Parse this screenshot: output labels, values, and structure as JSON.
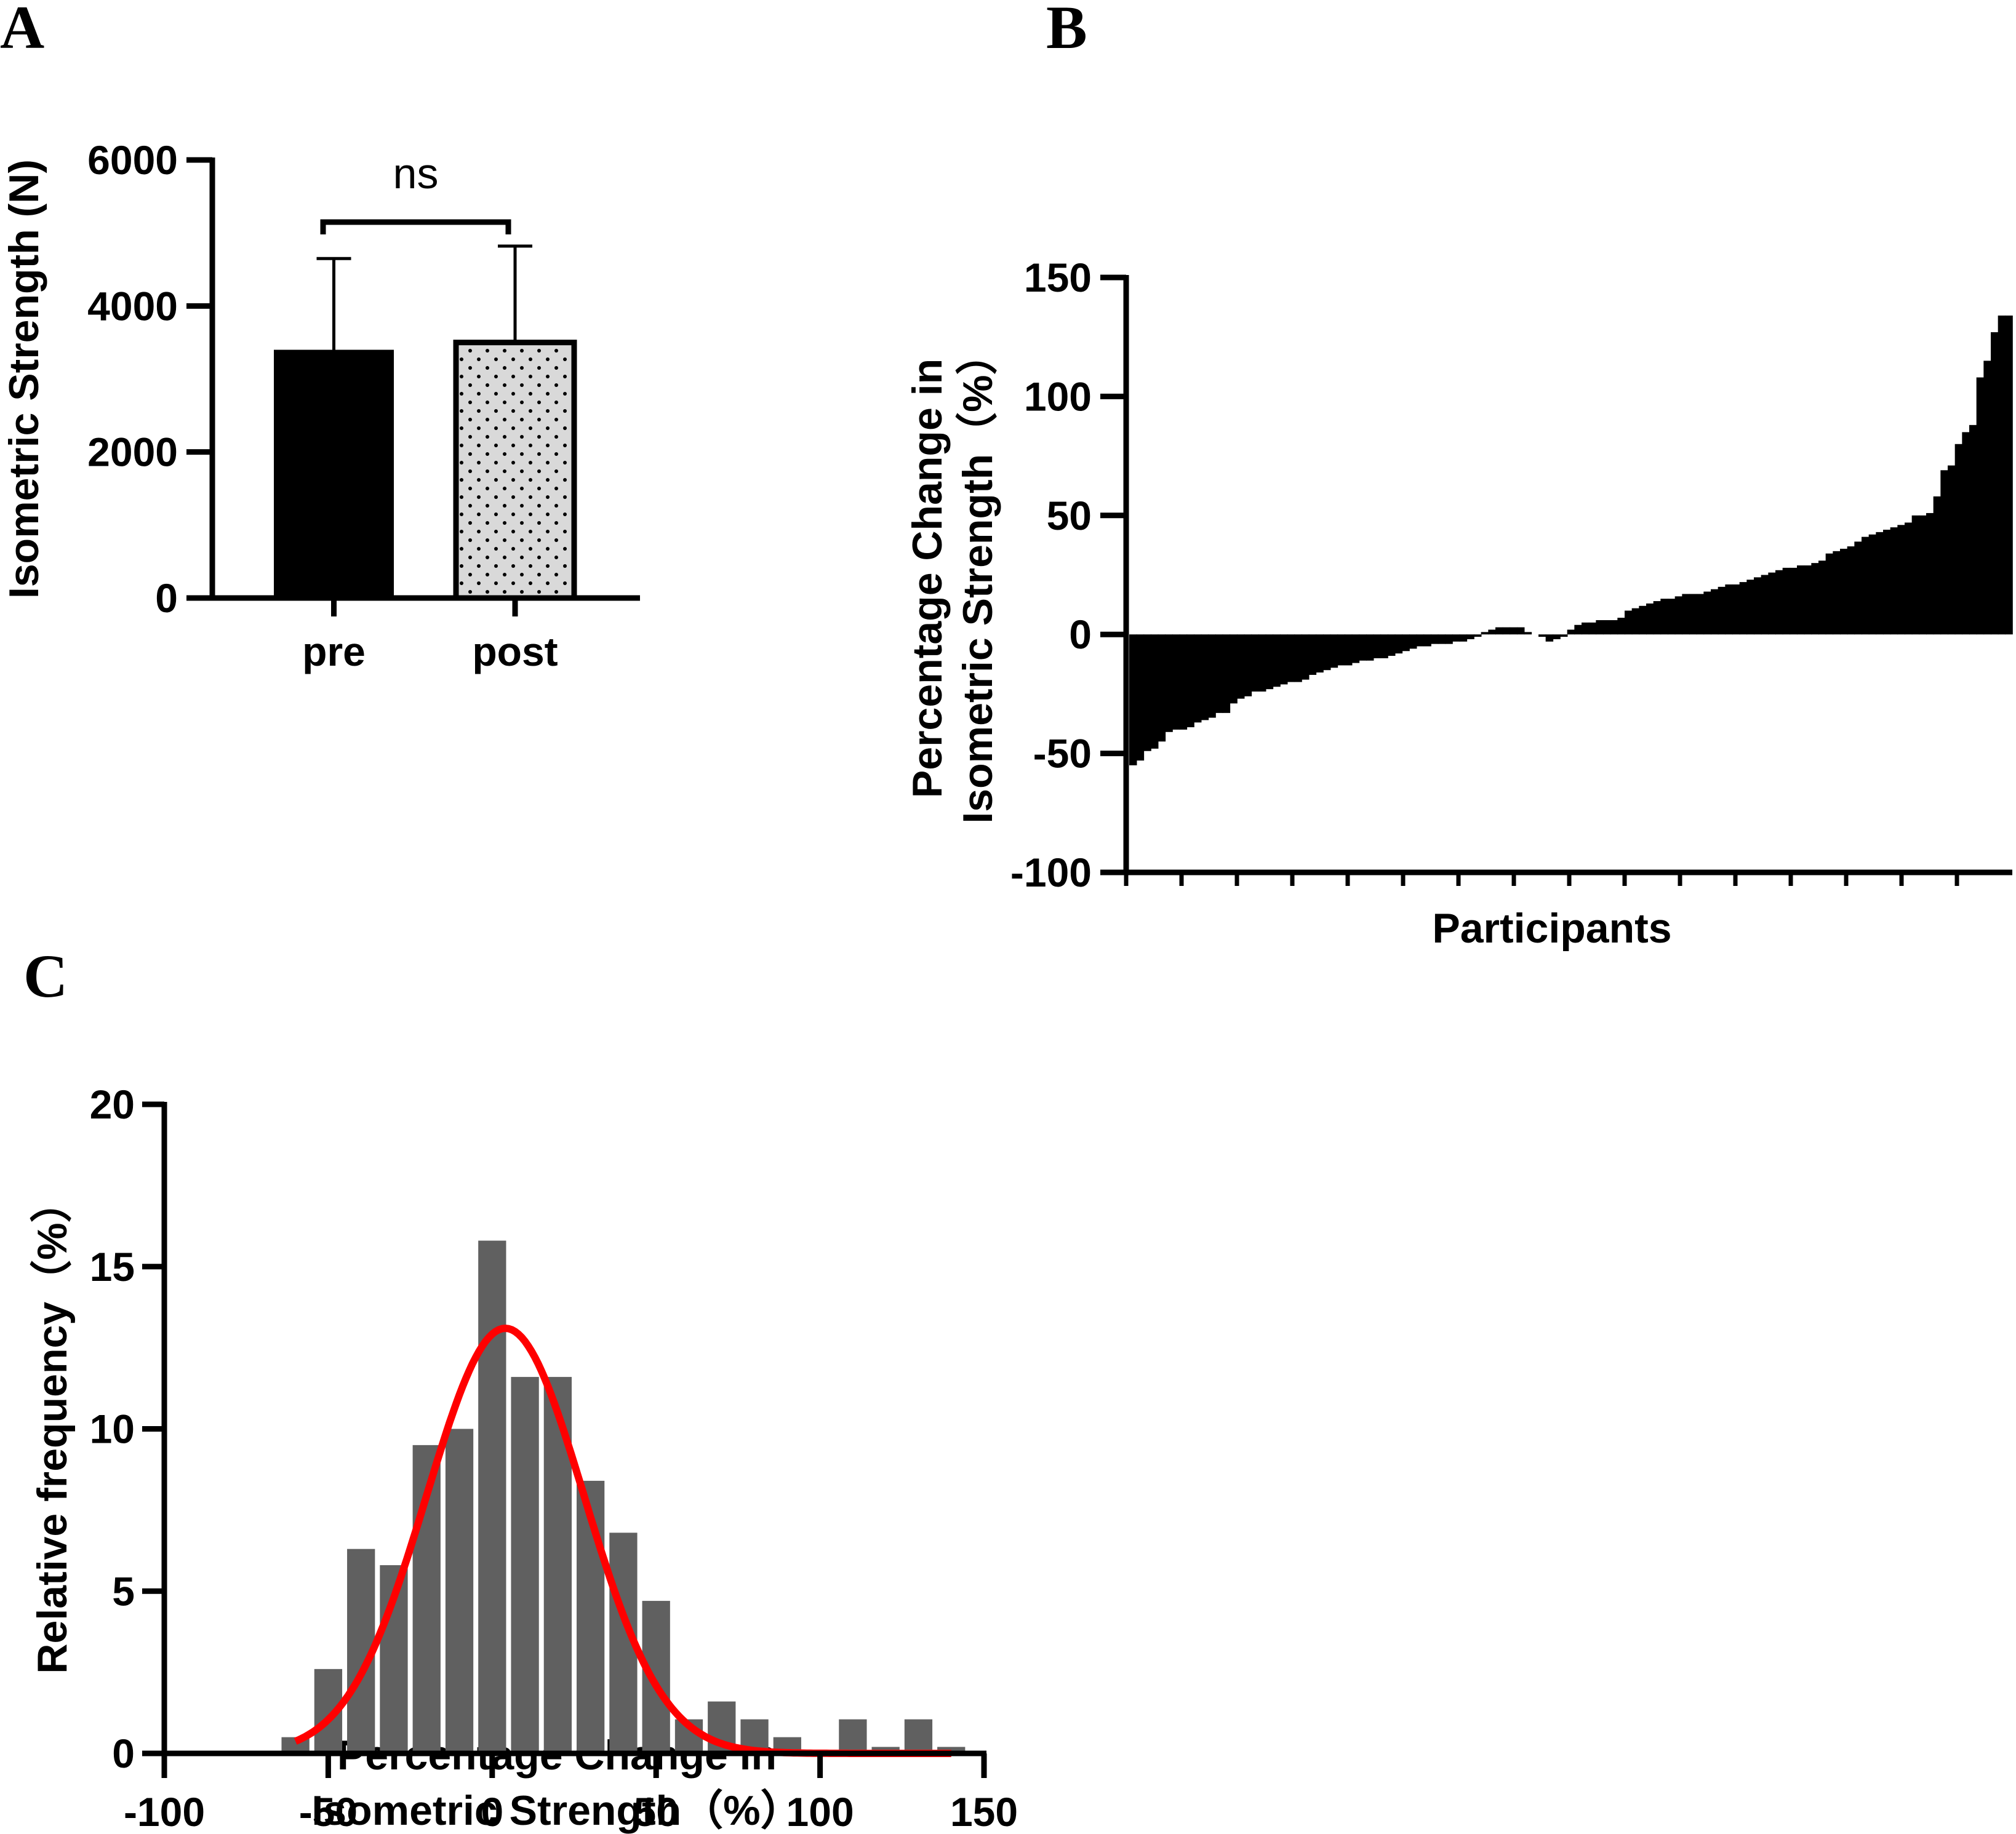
{
  "chart_data": [
    {
      "panel": "A",
      "type": "bar",
      "title": "",
      "xlabel": "",
      "ylabel": "Isometric Strength (N)",
      "ylim": [
        0,
        6000
      ],
      "yticks": [
        "0",
        "2000",
        "4000",
        "6000"
      ],
      "categories": [
        "pre",
        "post"
      ],
      "values": [
        3400,
        3500
      ],
      "error_upper": [
        4650,
        4820
      ],
      "fills": [
        "#000000",
        "#d9d9d9"
      ],
      "patterns": [
        "solid",
        "dotted"
      ],
      "annotation": {
        "text": "ns",
        "between": [
          "pre",
          "post"
        ]
      }
    },
    {
      "panel": "B",
      "type": "bar",
      "subtype": "waterfall",
      "xlabel": "Participants",
      "ylabel_lines": [
        "Percentage Change in",
        "Isometric Strength（%）"
      ],
      "ylim": [
        -100,
        150
      ],
      "yticks": [
        "-100",
        "-50",
        "0",
        "50",
        "100",
        "150"
      ],
      "values": [
        -55,
        -53,
        -49,
        -48,
        -45,
        -41,
        -40,
        -40,
        -39,
        -37,
        -36,
        -35,
        -33,
        -33,
        -29,
        -27,
        -26,
        -24,
        -24,
        -23,
        -22,
        -21,
        -20,
        -20,
        -19,
        -17,
        -16,
        -15,
        -14,
        -13,
        -13,
        -12,
        -11,
        -11,
        -10,
        -10,
        -9,
        -8,
        -7,
        -6,
        -5,
        -5,
        -4,
        -4,
        -4,
        -3,
        -3,
        -2,
        -1,
        1,
        2,
        3,
        3,
        3,
        3,
        1,
        0,
        -1,
        -3,
        -2,
        -1,
        2,
        4,
        5,
        5,
        6,
        6,
        6,
        7,
        10,
        11,
        12,
        13,
        14,
        15,
        15,
        16,
        17,
        17,
        17,
        18,
        19,
        20,
        21,
        21,
        22,
        23,
        24,
        25,
        26,
        27,
        28,
        28,
        29,
        29,
        30,
        31,
        34,
        35,
        36,
        37,
        39,
        41,
        42,
        43,
        44,
        45,
        46,
        47,
        50,
        50,
        51,
        58,
        69,
        71,
        80,
        85,
        88,
        108,
        115,
        127,
        134,
        134
      ],
      "color": "#000000"
    },
    {
      "panel": "C",
      "type": "bar",
      "subtype": "histogram",
      "xlabel_lines": [
        "Percentage Change in",
        "Isometric Strength（%）"
      ],
      "ylabel": "Relative frequency（%）",
      "xlim": [
        -100,
        150
      ],
      "ylim": [
        0,
        20
      ],
      "xticks": [
        "-100",
        "-50",
        "0",
        "50",
        "100",
        "150"
      ],
      "yticks": [
        "0",
        "5",
        "10",
        "15",
        "20"
      ],
      "bin_centers": [
        -60,
        -50,
        -40,
        -30,
        -20,
        -10,
        0,
        10,
        20,
        30,
        40,
        50,
        60,
        70,
        80,
        90,
        100,
        110,
        120,
        130,
        140
      ],
      "values": [
        0.5,
        2.6,
        6.3,
        5.8,
        9.5,
        10.0,
        15.8,
        11.6,
        11.6,
        8.4,
        6.8,
        4.7,
        1.05,
        1.6,
        1.05,
        0.5,
        0,
        1.05,
        0.2,
        1.05,
        0.2
      ],
      "bar_color": "#606060",
      "fit": {
        "type": "gaussian",
        "mean": 4,
        "sd": 24,
        "peak": 13.1,
        "x_range": [
          -60,
          140
        ],
        "color": "#ff0000"
      }
    }
  ],
  "panel_labels": {
    "a": "A",
    "b": "B",
    "c": "C"
  }
}
